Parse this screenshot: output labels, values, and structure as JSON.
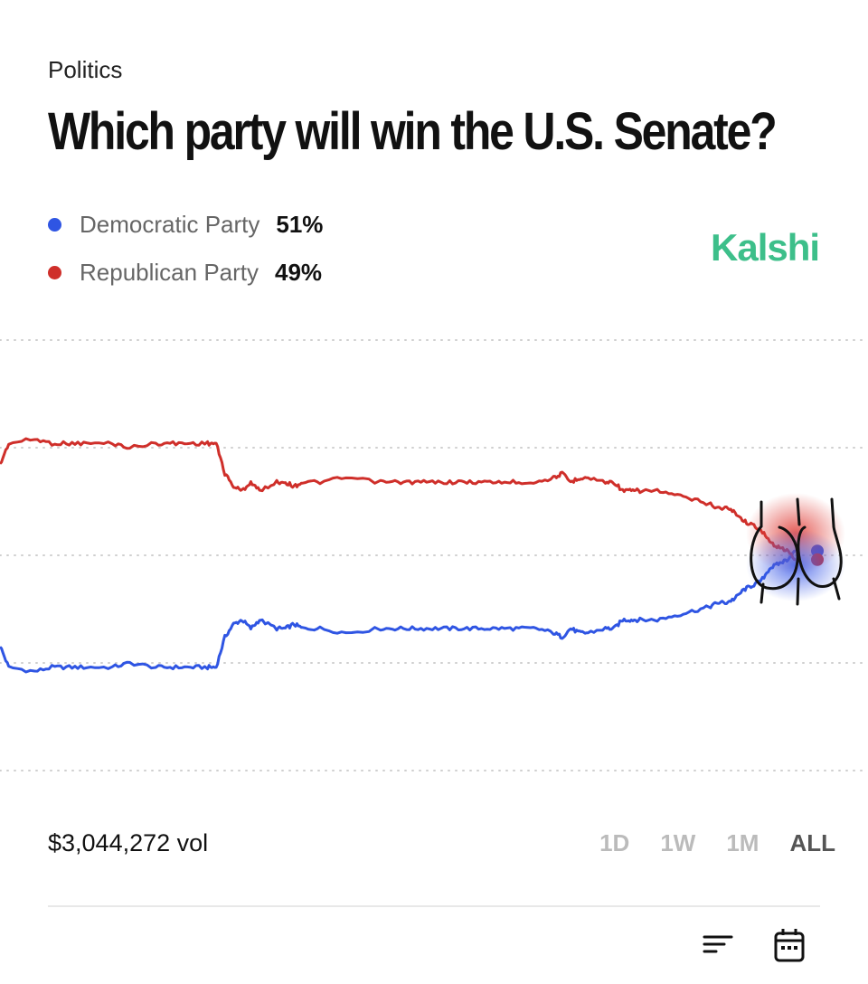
{
  "header": {
    "category": "Politics",
    "title": "Which party will win the U.S. Senate?",
    "brand": "Kalshi"
  },
  "legend": [
    {
      "name": "Democratic Party",
      "value": "51%",
      "color": "#2f55e3"
    },
    {
      "name": "Republican Party",
      "value": "49%",
      "color": "#cf2f2a"
    }
  ],
  "footer": {
    "volume": "$3,044,272 vol",
    "ranges": [
      "1D",
      "1W",
      "1M",
      "ALL"
    ],
    "active_range": "ALL",
    "icons": [
      "sort-lines-icon",
      "calendar-icon"
    ]
  },
  "chart_data": {
    "type": "line",
    "xlabel": "",
    "ylabel": "",
    "ylim": [
      0,
      100
    ],
    "grid": "dotted horizontal",
    "x": [
      0,
      1,
      4,
      6,
      8,
      10,
      13,
      15,
      18,
      20,
      22,
      24,
      25,
      26,
      27,
      28,
      29,
      30,
      32,
      33,
      34,
      35,
      37,
      40,
      44,
      46,
      48,
      50,
      52,
      54,
      56,
      58,
      60,
      62,
      64,
      65,
      66,
      67,
      68,
      70,
      71,
      72,
      73,
      74,
      76,
      78,
      80,
      82,
      83,
      84,
      85,
      86,
      87,
      88,
      89,
      90,
      91,
      92
    ],
    "series": [
      {
        "name": "Democratic Party",
        "color": "#2f55e3",
        "values": [
          29,
          24,
          23,
          24,
          24,
          24,
          24,
          25,
          24,
          24,
          24,
          24,
          24,
          31,
          34,
          35,
          33,
          35,
          33,
          33,
          34,
          33,
          33,
          32,
          33,
          33,
          33,
          33,
          33,
          33,
          33,
          33,
          33,
          33,
          32,
          31,
          33,
          32,
          32,
          33,
          33,
          35,
          35,
          35,
          35,
          36,
          37,
          38,
          39,
          39,
          40,
          42,
          43,
          44,
          47,
          48,
          49,
          51
        ]
      },
      {
        "name": "Republican Party",
        "color": "#cf2f2a",
        "values": [
          71,
          76,
          77,
          76,
          76,
          76,
          76,
          75,
          76,
          76,
          76,
          76,
          76,
          69,
          66,
          65,
          67,
          65,
          67,
          67,
          66,
          67,
          67,
          68,
          67,
          67,
          67,
          67,
          67,
          67,
          67,
          67,
          67,
          67,
          68,
          69,
          67,
          68,
          68,
          67,
          67,
          65,
          65,
          65,
          65,
          64,
          63,
          62,
          61,
          61,
          60,
          58,
          57,
          56,
          53,
          52,
          51,
          49
        ]
      }
    ]
  }
}
